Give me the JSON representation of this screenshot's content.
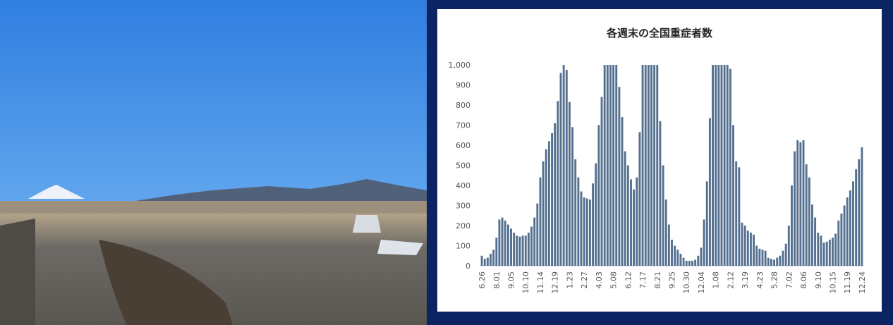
{
  "chart_data": {
    "type": "bar",
    "title": "各週末の全国重症者数",
    "color": "#54708f",
    "grid": false,
    "ylim": [
      0,
      1000
    ],
    "yticks": [
      0,
      100,
      200,
      300,
      400,
      500,
      600,
      700,
      800,
      900,
      {
        "value": 1000,
        "label": "1,000"
      }
    ],
    "categories": [
      "6.26",
      null,
      null,
      null,
      null,
      "8.01",
      null,
      null,
      null,
      null,
      "9.05",
      null,
      null,
      null,
      null,
      "10.10",
      null,
      null,
      null,
      null,
      "11.14",
      null,
      null,
      null,
      null,
      "12.19",
      null,
      null,
      null,
      null,
      "1.23",
      null,
      null,
      null,
      null,
      "2.27",
      null,
      null,
      null,
      null,
      "4.03",
      null,
      null,
      null,
      null,
      "5.08",
      null,
      null,
      null,
      null,
      "6.12",
      null,
      null,
      null,
      null,
      "7.17",
      null,
      null,
      null,
      null,
      "8.21",
      null,
      null,
      null,
      null,
      "9.25",
      null,
      null,
      null,
      null,
      "10.30",
      null,
      null,
      null,
      null,
      "12.04",
      null,
      null,
      null,
      null,
      "1.08",
      null,
      null,
      null,
      null,
      "2.12",
      null,
      null,
      null,
      null,
      "3.19",
      null,
      null,
      null,
      null,
      "4.23",
      null,
      null,
      null,
      null,
      "5.28",
      null,
      null,
      null,
      null,
      "7.02",
      null,
      null,
      null,
      null,
      "8.06",
      null,
      null,
      null,
      null,
      "9.10",
      null,
      null,
      null,
      null,
      "10.15",
      null,
      null,
      null,
      null,
      "11.19",
      null,
      null,
      null,
      null,
      "12.24"
    ],
    "values": [
      50,
      35,
      40,
      60,
      80,
      140,
      230,
      240,
      225,
      205,
      185,
      165,
      150,
      145,
      150,
      150,
      165,
      195,
      240,
      310,
      440,
      520,
      580,
      620,
      660,
      710,
      820,
      960,
      1000,
      975,
      815,
      690,
      530,
      440,
      370,
      340,
      335,
      330,
      410,
      510,
      700,
      840,
      1000,
      1000,
      1000,
      1000,
      1000,
      890,
      740,
      570,
      500,
      430,
      380,
      440,
      665,
      1000,
      1000,
      1000,
      1000,
      1000,
      1000,
      720,
      500,
      330,
      205,
      130,
      100,
      80,
      60,
      40,
      25,
      25,
      25,
      30,
      50,
      90,
      230,
      420,
      735,
      1000,
      1000,
      1000,
      1000,
      1000,
      1000,
      980,
      700,
      520,
      490,
      215,
      200,
      175,
      165,
      155,
      100,
      85,
      80,
      75,
      40,
      35,
      30,
      40,
      50,
      75,
      110,
      200,
      400,
      570,
      625,
      615,
      625,
      505,
      440,
      305,
      240,
      165,
      150,
      115,
      120,
      130,
      140,
      160,
      225,
      260,
      300,
      340,
      375,
      420,
      480,
      530,
      590
    ]
  }
}
